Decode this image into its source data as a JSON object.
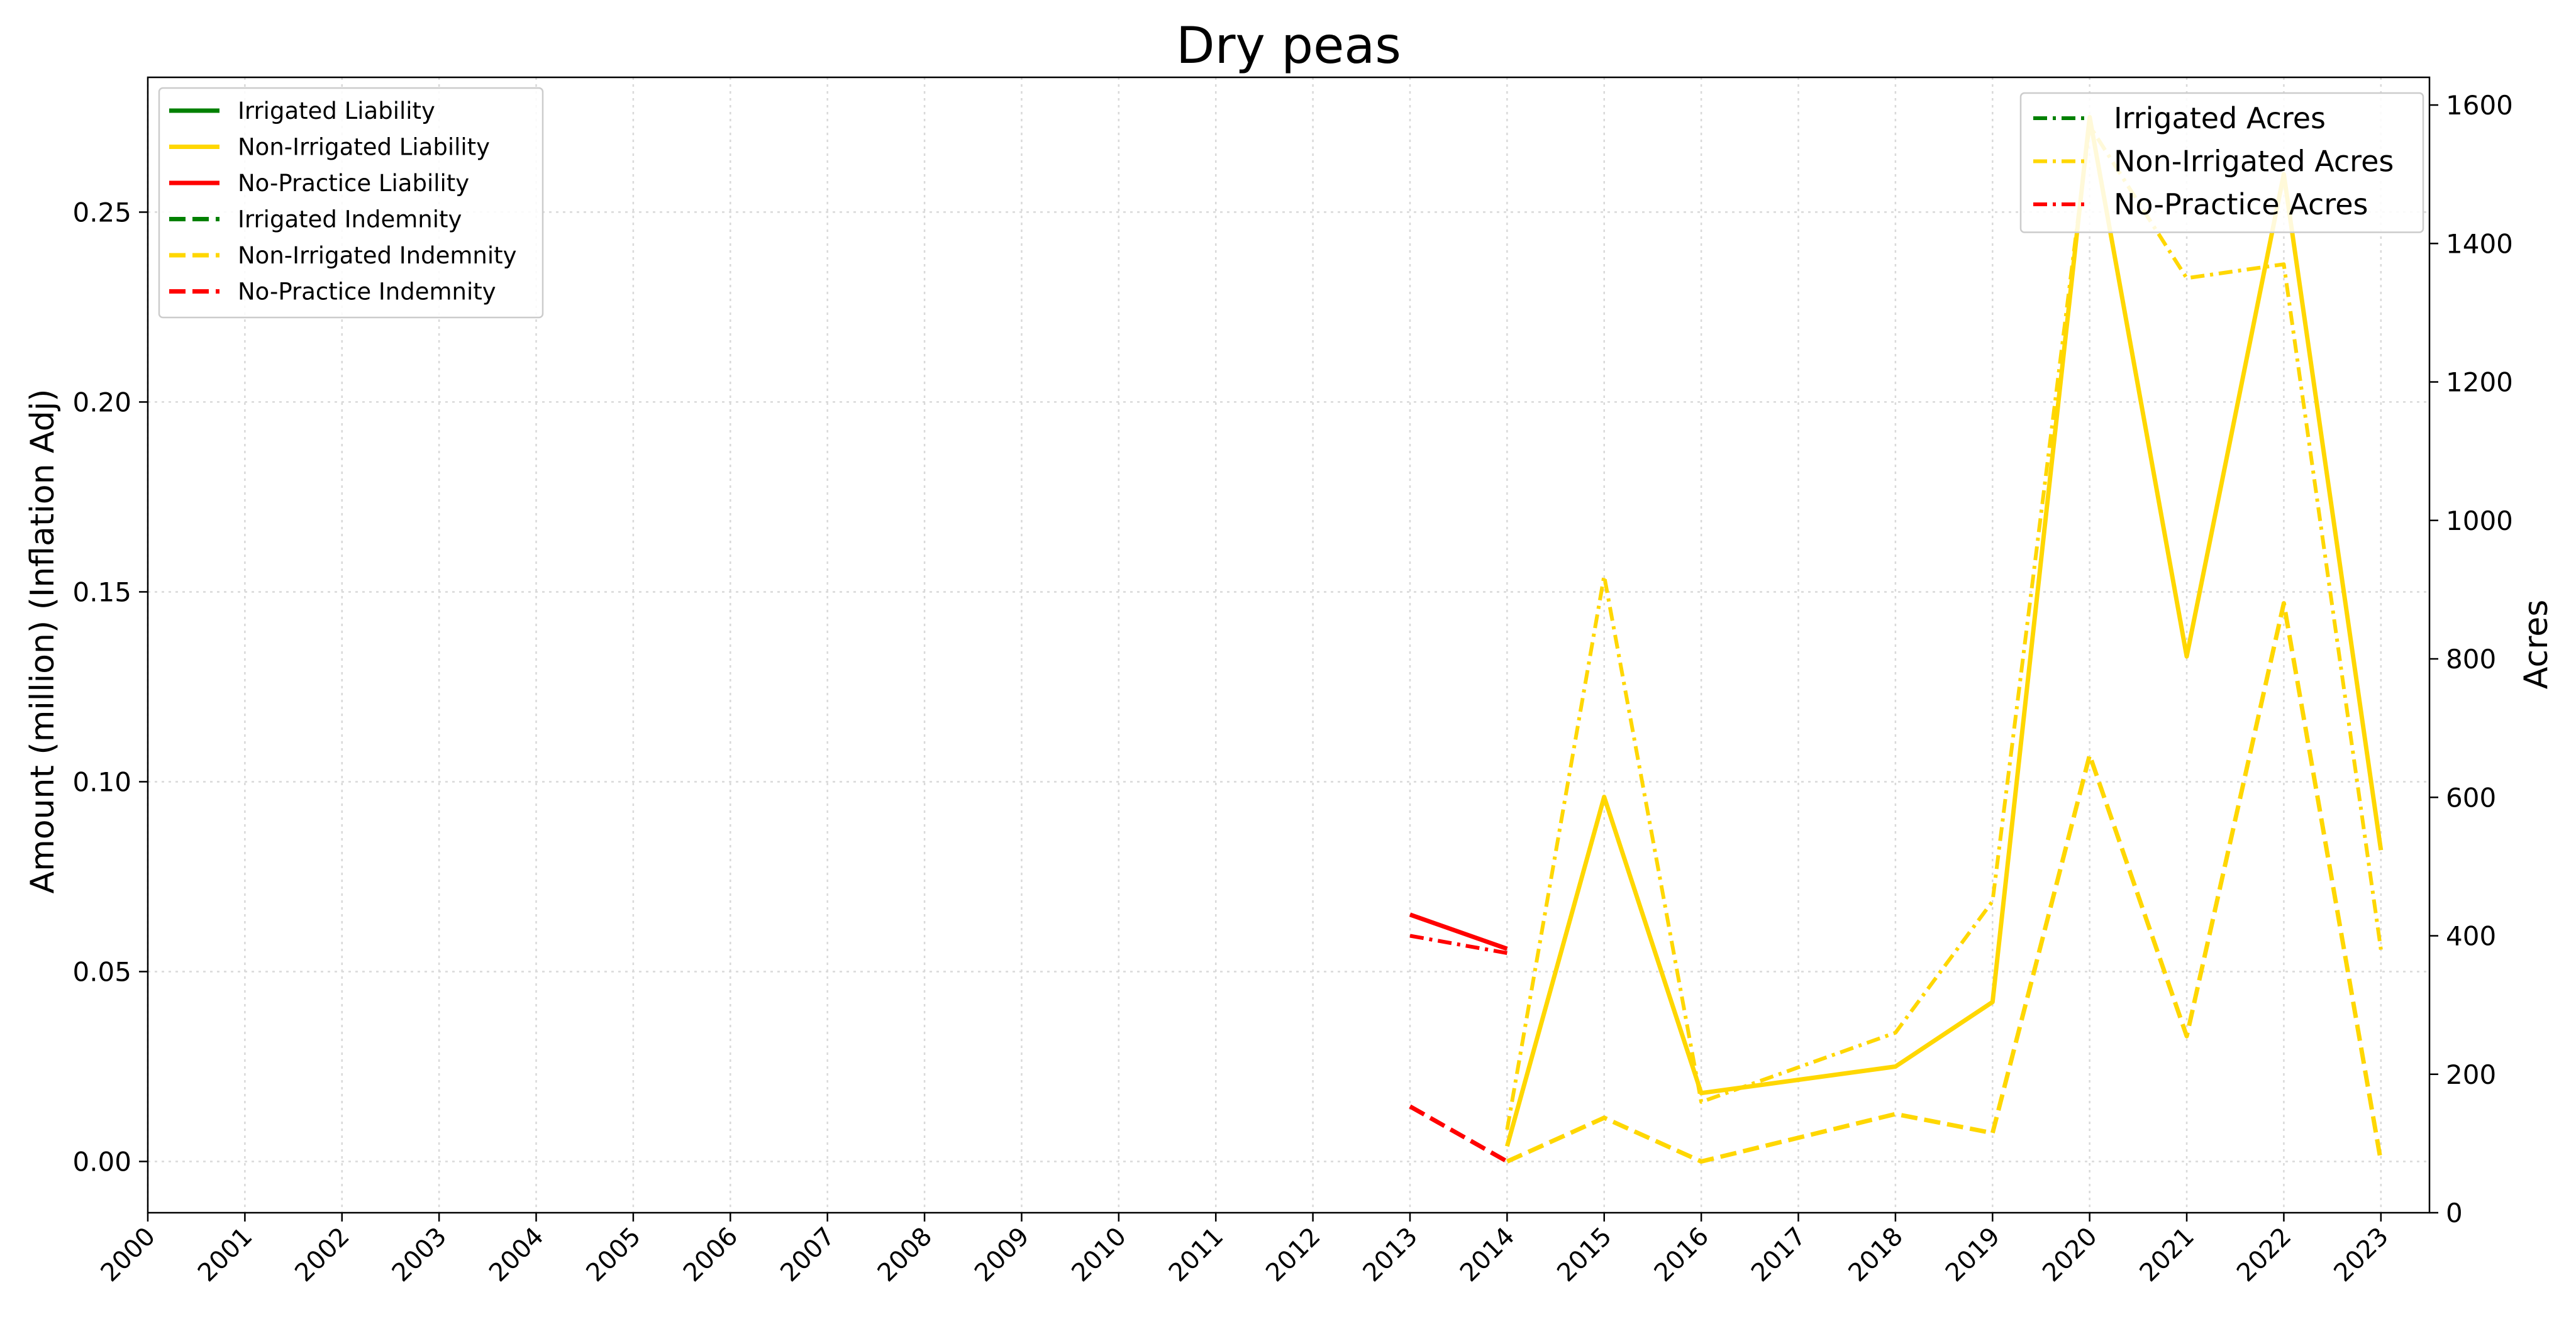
{
  "chart_data": {
    "type": "line",
    "title": "Dry peas",
    "ylabel_left": "Amount (million) (Inflation Adj)",
    "ylabel_right": "Acres",
    "x": [
      "2000",
      "2001",
      "2002",
      "2003",
      "2004",
      "2005",
      "2006",
      "2007",
      "2008",
      "2009",
      "2010",
      "2011",
      "2012",
      "2013",
      "2014",
      "2015",
      "2016",
      "2017",
      "2018",
      "2019",
      "2020",
      "2021",
      "2022",
      "2023"
    ],
    "ylim_left": [
      -0.0135,
      0.2855
    ],
    "ylim_right": [
      0,
      1640
    ],
    "left_ticks": [
      "0.00",
      "0.05",
      "0.10",
      "0.15",
      "0.20",
      "0.25"
    ],
    "right_ticks": [
      "0",
      "200",
      "400",
      "600",
      "800",
      "1000",
      "1200",
      "1400",
      "1600"
    ],
    "grid": true,
    "colors": {
      "irrigated": "#008000",
      "non_irrigated": "#FFD700",
      "no_practice": "#FF0000"
    },
    "legend_left": {
      "placement": "top-left",
      "entries": [
        {
          "label": "Irrigated Liability",
          "color": "#008000",
          "style": "solid"
        },
        {
          "label": "Non-Irrigated Liability",
          "color": "#FFD700",
          "style": "solid"
        },
        {
          "label": "No-Practice Liability",
          "color": "#FF0000",
          "style": "solid"
        },
        {
          "label": "Irrigated Indemnity",
          "color": "#008000",
          "style": "dashed"
        },
        {
          "label": "Non-Irrigated Indemnity",
          "color": "#FFD700",
          "style": "dashed"
        },
        {
          "label": "No-Practice Indemnity",
          "color": "#FF0000",
          "style": "dashed"
        }
      ]
    },
    "legend_right": {
      "placement": "top-right",
      "entries": [
        {
          "label": "Irrigated Acres",
          "color": "#008000",
          "style": "dashdot"
        },
        {
          "label": "Non-Irrigated Acres",
          "color": "#FFD700",
          "style": "dashdot"
        },
        {
          "label": "No-Practice Acres",
          "color": "#FF0000",
          "style": "dashdot"
        }
      ]
    },
    "series": [
      {
        "name": "Non-Irrigated Liability",
        "axis": "left",
        "color": "#FFD700",
        "style": "solid",
        "points": [
          [
            "2014",
            0.004
          ],
          [
            "2015",
            0.096
          ],
          [
            "2016",
            0.018
          ],
          [
            "2018",
            0.025
          ],
          [
            "2019",
            0.042
          ],
          [
            "2020",
            0.275
          ],
          [
            "2021",
            0.133
          ],
          [
            "2022",
            0.26
          ],
          [
            "2023",
            0.082
          ]
        ]
      },
      {
        "name": "No-Practice Liability",
        "axis": "left",
        "color": "#FF0000",
        "style": "solid",
        "points": [
          [
            "2013",
            0.065
          ],
          [
            "2014",
            0.056
          ]
        ]
      },
      {
        "name": "Non-Irrigated Indemnity",
        "axis": "left",
        "color": "#FFD700",
        "style": "dashed",
        "points": [
          [
            "2014",
            0.0
          ],
          [
            "2015",
            0.0115
          ],
          [
            "2016",
            0.0
          ],
          [
            "2018",
            0.0125
          ],
          [
            "2019",
            0.0075
          ],
          [
            "2020",
            0.107
          ],
          [
            "2021",
            0.033
          ],
          [
            "2022",
            0.147
          ],
          [
            "2023",
            0.0
          ]
        ]
      },
      {
        "name": "No-Practice Indemnity",
        "axis": "left",
        "color": "#FF0000",
        "style": "dashed",
        "points": [
          [
            "2013",
            0.0145
          ],
          [
            "2014",
            0.0
          ]
        ]
      },
      {
        "name": "Non-Irrigated Acres",
        "axis": "right",
        "color": "#FFD700",
        "style": "dashdot",
        "points": [
          [
            "2014",
            120
          ],
          [
            "2015",
            920
          ],
          [
            "2016",
            160
          ],
          [
            "2018",
            260
          ],
          [
            "2019",
            450
          ],
          [
            "2020",
            1570
          ],
          [
            "2021",
            1350
          ],
          [
            "2022",
            1370
          ],
          [
            "2023",
            380
          ]
        ]
      },
      {
        "name": "No-Practice Acres",
        "axis": "right",
        "color": "#FF0000",
        "style": "dashdot",
        "points": [
          [
            "2013",
            400
          ],
          [
            "2014",
            375
          ]
        ]
      }
    ]
  }
}
